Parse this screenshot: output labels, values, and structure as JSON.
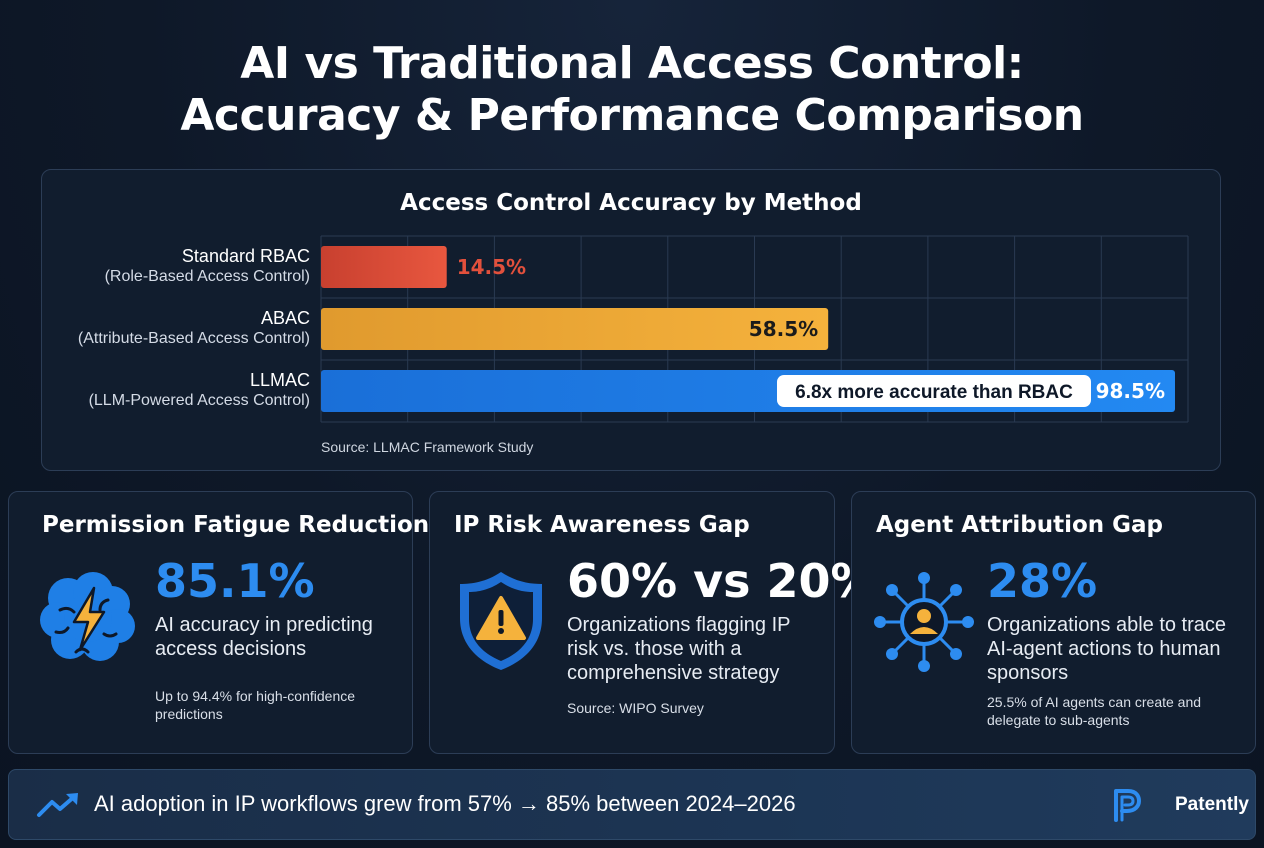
{
  "title_line1": "AI vs Traditional Access Control:",
  "title_line2": "Accuracy & Performance Comparison",
  "chart_data": {
    "type": "bar",
    "orientation": "horizontal",
    "title": "Access Control Accuracy by Method",
    "categories": [
      {
        "name": "Standard RBAC",
        "subtitle": "(Role-Based Access Control)"
      },
      {
        "name": "ABAC",
        "subtitle": "(Attribute-Based Access Control)"
      },
      {
        "name": "LLMAC",
        "subtitle": "(LLM-Powered Access Control)"
      }
    ],
    "values": [
      14.5,
      58.5,
      98.5
    ],
    "value_labels": [
      "14.5%",
      "58.5%",
      "98.5%"
    ],
    "xlim": [
      0,
      100
    ],
    "grid": true,
    "bar_colors": [
      "#e2503c",
      "#f0aa36",
      "#1f7fe6"
    ],
    "annotation": "6.8x more accurate than RBAC",
    "source": "Source: LLMAC Framework Study"
  },
  "cards": [
    {
      "title": "Permission Fatigue Reduction",
      "stat": "85.1%",
      "description": "AI accuracy in predicting access decisions",
      "note": "Up to 94.4% for high-confidence predictions",
      "icon": "brain-lightning-icon"
    },
    {
      "title": "IP Risk Awareness Gap",
      "stat": "60% vs 20%",
      "description": "Organizations flagging IP risk vs. those with a comprehensive strategy",
      "note": "Source: WIPO Survey",
      "icon": "shield-warning-icon"
    },
    {
      "title": "Agent Attribution Gap",
      "stat": "28%",
      "description": "Organizations able to trace AI-agent actions to human sponsors",
      "note": "25.5% of AI agents can create and delegate to sub-agents",
      "icon": "network-user-icon"
    }
  ],
  "footer": {
    "text": "AI adoption in IP workflows grew from 57% → 85% between 2024–2026",
    "brand": "Patently"
  },
  "colors": {
    "accent_blue": "#2d8cf0",
    "background": "#0e1828"
  }
}
